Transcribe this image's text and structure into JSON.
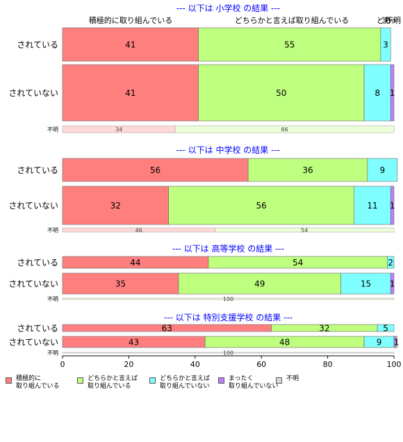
{
  "chart_data": {
    "type": "bar",
    "orientation": "horizontal",
    "stacked": "percent",
    "xlim": [
      0,
      100
    ],
    "xticks": [
      "0",
      "20",
      "40",
      "60",
      "80",
      "100"
    ],
    "series": [
      {
        "name": "積極的に\n取り組んでいる",
        "color": "#ff7f7f"
      },
      {
        "name": "どちらかと言えば\n取り組んでいる",
        "color": "#bfff7f"
      },
      {
        "name": "どちらかと言えば\n取り組んでいない",
        "color": "#7fffff"
      },
      {
        "name": "まったく\n取り組んでいない",
        "color": "#bf7fff"
      },
      {
        "name": "不明",
        "color": "#d9d9d9"
      }
    ],
    "panels": [
      {
        "title": "--- 以下は 小学校 の結果 ---",
        "top_labels": [
          "積極的に取り組んでいる",
          "どちらかと言えば取り組んでいる",
          "どち",
          "まっ",
          "不明"
        ],
        "rows": [
          {
            "label": "されている",
            "values": [
              41,
              55,
              3,
              0,
              0
            ],
            "value_labels": [
              "41",
              "55",
              "3",
              "",
              ""
            ]
          },
          {
            "label": "されていない",
            "values": [
              41,
              50,
              8,
              1,
              0
            ],
            "value_labels": [
              "41",
              "50",
              "8",
              "1",
              ""
            ]
          },
          {
            "label": "不明",
            "values": [
              34,
              66,
              0,
              0,
              0
            ],
            "value_labels": [
              "34",
              "66",
              "",
              "",
              ""
            ],
            "faded": true
          }
        ]
      },
      {
        "title": "--- 以下は 中学校 の結果 ---",
        "rows": [
          {
            "label": "されている",
            "values": [
              56,
              36,
              9,
              0,
              0
            ],
            "value_labels": [
              "56",
              "36",
              "9",
              "",
              ""
            ]
          },
          {
            "label": "されていない",
            "values": [
              32,
              56,
              11,
              1,
              0
            ],
            "value_labels": [
              "32",
              "56",
              "11",
              "1",
              ""
            ]
          },
          {
            "label": "不明",
            "values": [
              46,
              54,
              0,
              0,
              0
            ],
            "value_labels": [
              "46",
              "54",
              "",
              "",
              ""
            ],
            "faded": true
          }
        ]
      },
      {
        "title": "--- 以下は 高等学校 の結果 ---",
        "rows": [
          {
            "label": "されている",
            "values": [
              44,
              54,
              2,
              0,
              0
            ],
            "value_labels": [
              "44",
              "54",
              "2",
              "",
              ""
            ]
          },
          {
            "label": "されていない",
            "values": [
              35,
              49,
              15,
              1,
              0
            ],
            "value_labels": [
              "35",
              "49",
              "15",
              "1",
              ""
            ]
          },
          {
            "label": "不明",
            "values": [
              0,
              100,
              0,
              0,
              0
            ],
            "value_labels": [
              "",
              "100",
              "",
              "",
              ""
            ],
            "faded": true
          }
        ]
      },
      {
        "title": "--- 以下は 特別支援学校 の結果 ---",
        "rows": [
          {
            "label": "されている",
            "values": [
              63,
              32,
              5,
              0,
              0
            ],
            "value_labels": [
              "63",
              "32",
              "5",
              "",
              ""
            ]
          },
          {
            "label": "されていない",
            "values": [
              43,
              48,
              9,
              0.5,
              0.5
            ],
            "value_labels": [
              "43",
              "48",
              "9",
              "",
              "1"
            ]
          },
          {
            "label": "不明",
            "values": [
              0,
              100,
              0,
              0,
              0
            ],
            "value_labels": [
              "",
              "100",
              "",
              "",
              ""
            ],
            "faded": true
          }
        ]
      }
    ]
  }
}
